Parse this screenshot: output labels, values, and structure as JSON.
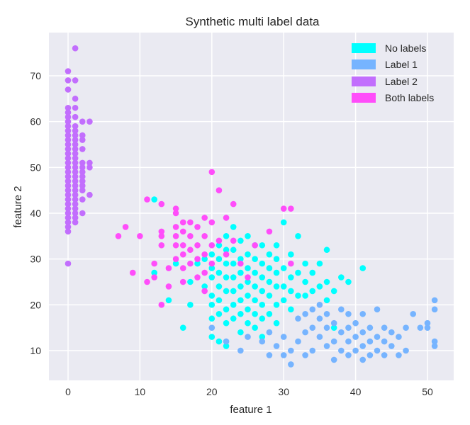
{
  "chart_data": {
    "type": "scatter",
    "title": "Synthetic multi label data",
    "xlabel": "feature 1",
    "ylabel": "feature 2",
    "xlim": [
      -2.7,
      53.5
    ],
    "ylim": [
      3.5,
      79.5
    ],
    "xticks": [
      0,
      10,
      20,
      30,
      40,
      50
    ],
    "yticks": [
      10,
      20,
      30,
      40,
      50,
      60,
      70
    ],
    "grid": true,
    "legend_position": "upper right",
    "background": "#eaeaf2",
    "series": [
      {
        "name": "No labels",
        "color": "#00ffff",
        "points": [
          [
            12,
            43
          ],
          [
            12,
            27
          ],
          [
            14,
            21
          ],
          [
            15,
            29
          ],
          [
            16,
            15
          ],
          [
            17,
            20
          ],
          [
            17,
            25
          ],
          [
            18,
            29
          ],
          [
            19,
            24
          ],
          [
            19,
            30
          ],
          [
            20,
            17
          ],
          [
            20,
            13
          ],
          [
            20,
            20
          ],
          [
            20,
            22
          ],
          [
            20,
            26
          ],
          [
            20,
            28
          ],
          [
            20,
            31
          ],
          [
            21,
            12
          ],
          [
            21,
            18
          ],
          [
            21,
            21
          ],
          [
            21,
            24
          ],
          [
            21,
            27
          ],
          [
            21,
            30
          ],
          [
            21,
            33
          ],
          [
            22,
            11
          ],
          [
            22,
            16
          ],
          [
            22,
            19
          ],
          [
            22,
            23
          ],
          [
            22,
            26
          ],
          [
            22,
            29
          ],
          [
            22,
            32
          ],
          [
            22,
            35
          ],
          [
            23,
            17
          ],
          [
            23,
            20
          ],
          [
            23,
            23
          ],
          [
            23,
            26
          ],
          [
            23,
            29
          ],
          [
            23,
            32
          ],
          [
            23,
            37
          ],
          [
            24,
            14
          ],
          [
            24,
            18
          ],
          [
            24,
            21
          ],
          [
            24,
            24
          ],
          [
            24,
            27
          ],
          [
            24,
            30
          ],
          [
            24,
            34
          ],
          [
            25,
            16
          ],
          [
            25,
            19
          ],
          [
            25,
            22
          ],
          [
            25,
            25
          ],
          [
            25,
            28
          ],
          [
            25,
            31
          ],
          [
            25,
            35
          ],
          [
            26,
            15
          ],
          [
            26,
            18
          ],
          [
            26,
            21
          ],
          [
            26,
            24
          ],
          [
            26,
            27
          ],
          [
            26,
            30
          ],
          [
            26,
            33
          ],
          [
            27,
            13
          ],
          [
            27,
            17
          ],
          [
            27,
            20
          ],
          [
            27,
            23
          ],
          [
            27,
            26
          ],
          [
            27,
            29
          ],
          [
            27,
            33
          ],
          [
            28,
            18
          ],
          [
            28,
            22
          ],
          [
            28,
            25
          ],
          [
            28,
            28
          ],
          [
            28,
            31
          ],
          [
            29,
            16
          ],
          [
            29,
            20
          ],
          [
            29,
            24
          ],
          [
            29,
            27
          ],
          [
            29,
            30
          ],
          [
            29,
            33
          ],
          [
            30,
            21
          ],
          [
            30,
            24
          ],
          [
            30,
            28
          ],
          [
            30,
            38
          ],
          [
            31,
            19
          ],
          [
            31,
            23
          ],
          [
            31,
            26
          ],
          [
            31,
            31
          ],
          [
            32,
            22
          ],
          [
            32,
            27
          ],
          [
            32,
            35
          ],
          [
            33,
            22
          ],
          [
            33,
            25
          ],
          [
            33,
            29
          ],
          [
            34,
            23
          ],
          [
            34,
            27
          ],
          [
            35,
            24
          ],
          [
            35,
            29
          ],
          [
            36,
            21
          ],
          [
            36,
            25
          ],
          [
            36,
            32
          ],
          [
            37,
            15
          ],
          [
            37,
            23
          ],
          [
            38,
            26
          ],
          [
            39,
            25
          ],
          [
            41,
            28
          ]
        ]
      },
      {
        "name": "Label 1",
        "color": "#76b4ff",
        "points": [
          [
            20,
            15
          ],
          [
            22,
            12
          ],
          [
            24,
            10
          ],
          [
            25,
            13
          ],
          [
            27,
            12
          ],
          [
            28,
            9
          ],
          [
            28,
            14
          ],
          [
            29,
            11
          ],
          [
            30,
            9
          ],
          [
            30,
            13
          ],
          [
            31,
            7
          ],
          [
            31,
            10
          ],
          [
            32,
            12
          ],
          [
            32,
            17
          ],
          [
            33,
            9
          ],
          [
            33,
            14
          ],
          [
            33,
            18
          ],
          [
            34,
            10
          ],
          [
            34,
            15
          ],
          [
            34,
            19
          ],
          [
            35,
            13
          ],
          [
            35,
            17
          ],
          [
            35,
            20
          ],
          [
            36,
            11
          ],
          [
            36,
            15
          ],
          [
            36,
            18
          ],
          [
            37,
            8
          ],
          [
            37,
            12
          ],
          [
            37,
            16
          ],
          [
            38,
            10
          ],
          [
            38,
            14
          ],
          [
            38,
            19
          ],
          [
            39,
            9
          ],
          [
            39,
            12
          ],
          [
            39,
            15
          ],
          [
            39,
            18
          ],
          [
            40,
            10
          ],
          [
            40,
            13
          ],
          [
            40,
            16
          ],
          [
            41,
            8
          ],
          [
            41,
            11
          ],
          [
            41,
            14
          ],
          [
            41,
            18
          ],
          [
            42,
            9
          ],
          [
            42,
            12
          ],
          [
            42,
            15
          ],
          [
            43,
            10
          ],
          [
            43,
            13
          ],
          [
            43,
            19
          ],
          [
            44,
            9
          ],
          [
            44,
            12
          ],
          [
            44,
            15
          ],
          [
            45,
            11
          ],
          [
            45,
            14
          ],
          [
            46,
            9
          ],
          [
            46,
            13
          ],
          [
            47,
            15
          ],
          [
            47,
            10
          ],
          [
            48,
            18
          ],
          [
            49,
            15
          ],
          [
            50,
            15
          ],
          [
            50,
            16
          ],
          [
            51,
            21
          ],
          [
            51,
            19
          ],
          [
            51,
            12
          ],
          [
            51,
            11
          ]
        ]
      },
      {
        "name": "Label 2",
        "color": "#c26efd",
        "points": [
          [
            0,
            29
          ],
          [
            0,
            36
          ],
          [
            0,
            37
          ],
          [
            0,
            38
          ],
          [
            0,
            39
          ],
          [
            0,
            40
          ],
          [
            0,
            41
          ],
          [
            0,
            42
          ],
          [
            0,
            43
          ],
          [
            0,
            44
          ],
          [
            0,
            45
          ],
          [
            0,
            46
          ],
          [
            0,
            47
          ],
          [
            0,
            48
          ],
          [
            0,
            49
          ],
          [
            0,
            50
          ],
          [
            0,
            51
          ],
          [
            0,
            52
          ],
          [
            0,
            53
          ],
          [
            0,
            54
          ],
          [
            0,
            55
          ],
          [
            0,
            56
          ],
          [
            0,
            57
          ],
          [
            0,
            58
          ],
          [
            0,
            59
          ],
          [
            0,
            60
          ],
          [
            0,
            61
          ],
          [
            0,
            62
          ],
          [
            0,
            63
          ],
          [
            0,
            67
          ],
          [
            0,
            69
          ],
          [
            0,
            71
          ],
          [
            1,
            38
          ],
          [
            1,
            39
          ],
          [
            1,
            40
          ],
          [
            1,
            41
          ],
          [
            1,
            42
          ],
          [
            1,
            43
          ],
          [
            1,
            44
          ],
          [
            1,
            45
          ],
          [
            1,
            46
          ],
          [
            1,
            47
          ],
          [
            1,
            48
          ],
          [
            1,
            49
          ],
          [
            1,
            50
          ],
          [
            1,
            51
          ],
          [
            1,
            52
          ],
          [
            1,
            53
          ],
          [
            1,
            54
          ],
          [
            1,
            55
          ],
          [
            1,
            56
          ],
          [
            1,
            57
          ],
          [
            1,
            58
          ],
          [
            1,
            59
          ],
          [
            1,
            61
          ],
          [
            1,
            63
          ],
          [
            1,
            65
          ],
          [
            1,
            69
          ],
          [
            1,
            76
          ],
          [
            2,
            40
          ],
          [
            2,
            43
          ],
          [
            2,
            45
          ],
          [
            2,
            46
          ],
          [
            2,
            47
          ],
          [
            2,
            48
          ],
          [
            2,
            49
          ],
          [
            2,
            50
          ],
          [
            2,
            51
          ],
          [
            2,
            54
          ],
          [
            2,
            56
          ],
          [
            2,
            57
          ],
          [
            2,
            60
          ],
          [
            3,
            44
          ],
          [
            3,
            50
          ],
          [
            3,
            51
          ],
          [
            3,
            60
          ]
        ]
      },
      {
        "name": "Both labels",
        "color": "#ff4dfa",
        "points": [
          [
            7,
            35
          ],
          [
            8,
            37
          ],
          [
            9,
            27
          ],
          [
            10,
            35
          ],
          [
            11,
            25
          ],
          [
            11,
            43
          ],
          [
            12,
            26
          ],
          [
            12,
            29
          ],
          [
            13,
            20
          ],
          [
            13,
            42
          ],
          [
            13,
            33
          ],
          [
            13,
            35
          ],
          [
            13,
            36
          ],
          [
            14,
            24
          ],
          [
            14,
            28
          ],
          [
            15,
            30
          ],
          [
            15,
            33
          ],
          [
            15,
            35
          ],
          [
            15,
            37
          ],
          [
            15,
            41
          ],
          [
            15,
            40
          ],
          [
            16,
            25
          ],
          [
            16,
            28
          ],
          [
            16,
            31
          ],
          [
            16,
            33
          ],
          [
            16,
            36
          ],
          [
            16,
            38
          ],
          [
            17,
            29
          ],
          [
            17,
            32
          ],
          [
            17,
            35
          ],
          [
            17,
            38
          ],
          [
            18,
            26
          ],
          [
            18,
            30
          ],
          [
            18,
            33
          ],
          [
            18,
            37
          ],
          [
            19,
            23
          ],
          [
            19,
            27
          ],
          [
            19,
            31
          ],
          [
            19,
            35
          ],
          [
            19,
            39
          ],
          [
            20,
            29
          ],
          [
            20,
            33
          ],
          [
            20,
            38
          ],
          [
            20,
            49
          ],
          [
            21,
            34
          ],
          [
            21,
            45
          ],
          [
            22,
            31
          ],
          [
            22,
            39
          ],
          [
            23,
            34
          ],
          [
            23,
            42
          ],
          [
            24,
            29
          ],
          [
            25,
            26
          ],
          [
            26,
            33
          ],
          [
            28,
            36
          ],
          [
            30,
            41
          ],
          [
            31,
            41
          ],
          [
            31,
            29
          ]
        ]
      }
    ]
  },
  "legend": {
    "items": [
      {
        "label": "No labels",
        "color": "#00ffff"
      },
      {
        "label": "Label 1",
        "color": "#76b4ff"
      },
      {
        "label": "Label 2",
        "color": "#c26efd"
      },
      {
        "label": "Both labels",
        "color": "#ff4dfa"
      }
    ]
  }
}
